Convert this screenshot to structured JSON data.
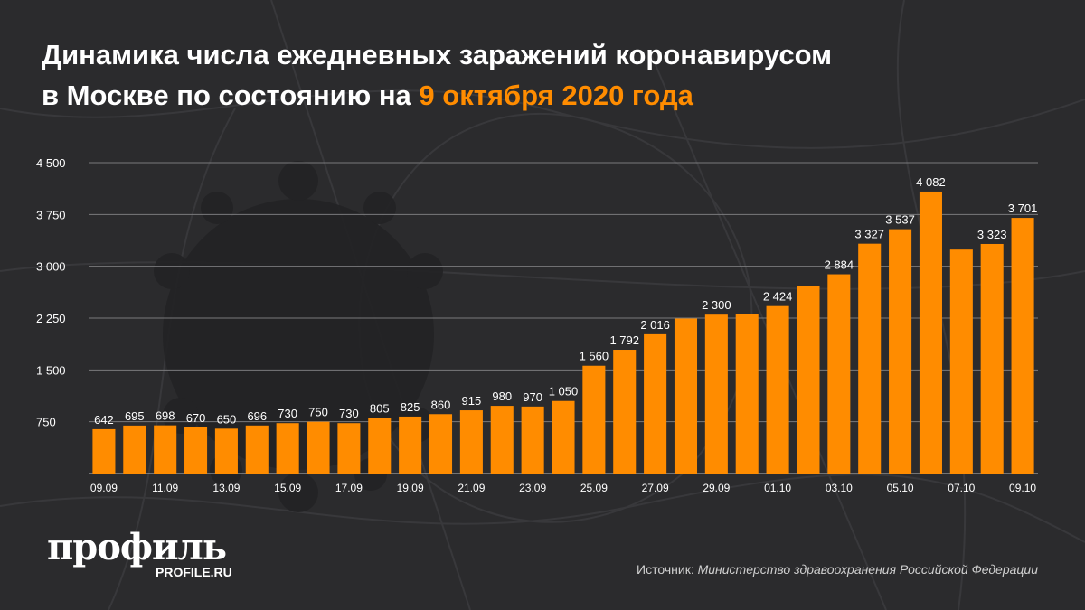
{
  "title": {
    "line1": "Динамика числа ежедневных заражений коронавирусом",
    "line2_prefix": "в Москве по состоянию на ",
    "line2_highlight": "9 октября 2020 года"
  },
  "chart_data": {
    "type": "bar",
    "title": "Динамика числа ежедневных заражений коронавирусом в Москве по состоянию на 9 октября 2020 года",
    "xlabel": "",
    "ylabel": "",
    "ylim": [
      0,
      4500
    ],
    "yticks": [
      750,
      1500,
      2250,
      3000,
      3750,
      4500
    ],
    "ytick_labels": [
      "750",
      "1 500",
      "2 250",
      "3 000",
      "3 750",
      "4 500"
    ],
    "grid": true,
    "bar_color": "#ff8c00",
    "categories": [
      "09.09",
      "10.09",
      "11.09",
      "12.09",
      "13.09",
      "14.09",
      "15.09",
      "16.09",
      "17.09",
      "18.09",
      "19.09",
      "20.09",
      "21.09",
      "22.09",
      "23.09",
      "24.09",
      "25.09",
      "26.09",
      "27.09",
      "28.09",
      "29.09",
      "30.09",
      "01.10",
      "02.10",
      "03.10",
      "04.10",
      "05.10",
      "06.10",
      "07.10",
      "08.10",
      "09.10"
    ],
    "xtick_labels": [
      "09.09",
      "",
      "11.09",
      "",
      "13.09",
      "",
      "15.09",
      "",
      "17.09",
      "",
      "19.09",
      "",
      "21.09",
      "",
      "23.09",
      "",
      "25.09",
      "",
      "27.09",
      "",
      "29.09",
      "",
      "01.10",
      "",
      "03.10",
      "",
      "05.10",
      "",
      "07.10",
      "",
      "09.10"
    ],
    "values": [
      642,
      695,
      698,
      670,
      650,
      696,
      730,
      750,
      730,
      805,
      825,
      860,
      915,
      980,
      970,
      1050,
      1560,
      1792,
      2016,
      2244,
      2300,
      2310,
      2424,
      2712,
      2884,
      3327,
      3537,
      4082,
      3242,
      3323,
      3701
    ],
    "value_labels": [
      "642",
      "695",
      "698",
      "670",
      "650",
      "696",
      "730",
      "750",
      "730",
      "805",
      "825",
      "860",
      "915",
      "980",
      "970",
      "1 050",
      "1 560",
      "1 792",
      "2 016",
      "",
      "2 300",
      "",
      "2 424",
      "",
      "2 884",
      "3 327",
      "3 537",
      "4 082",
      "",
      "3 323",
      "3 701"
    ]
  },
  "logo": {
    "name": "профиль",
    "url": "PROFILE.RU"
  },
  "source": {
    "prefix": "Источник: ",
    "text": "Министерство здравоохранения Российской Федерации"
  },
  "colors": {
    "background": "#2b2b2d",
    "accent": "#ff8c00",
    "text": "#ffffff"
  }
}
